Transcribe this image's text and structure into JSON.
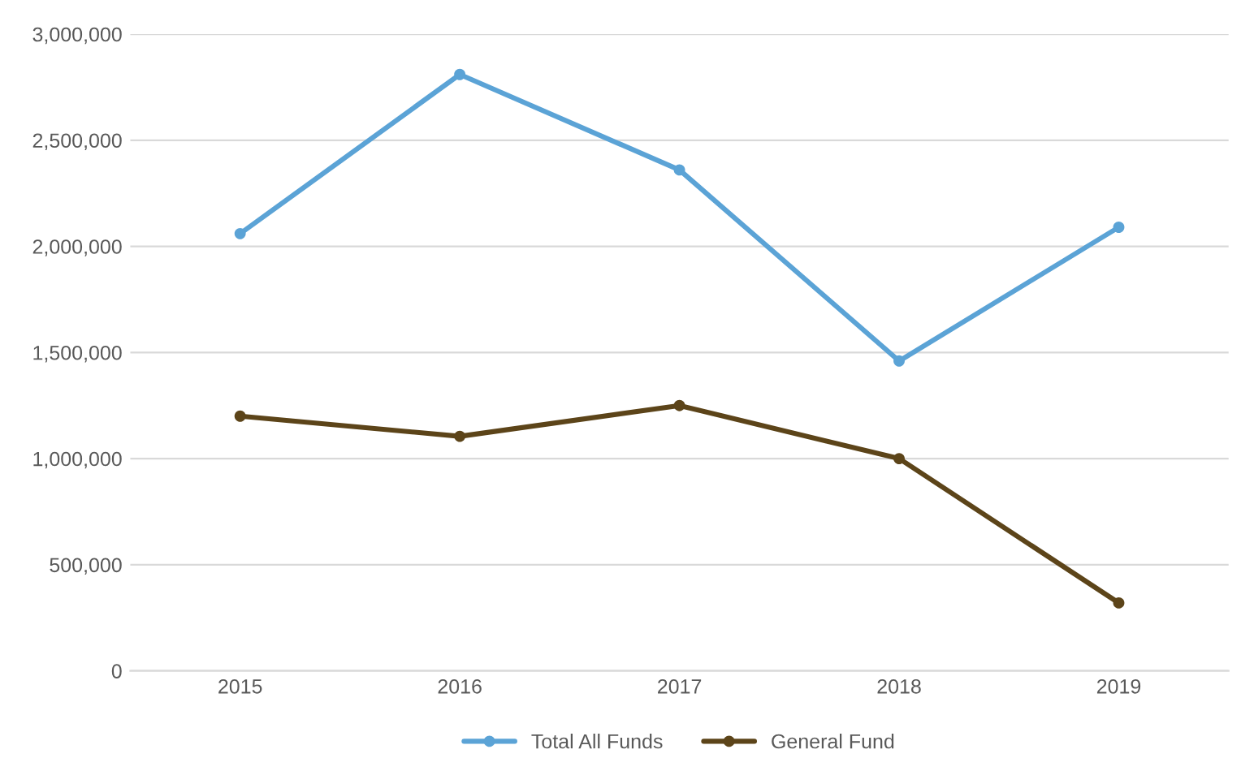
{
  "chart_data": {
    "type": "line",
    "categories": [
      "2015",
      "2016",
      "2017",
      "2018",
      "2019"
    ],
    "series": [
      {
        "name": "Total All Funds",
        "color": "#5ba3d6",
        "values": [
          2060000,
          2810000,
          2360000,
          1460000,
          2090000
        ]
      },
      {
        "name": "General Fund",
        "color": "#5c4419",
        "values": [
          1200000,
          1105000,
          1250000,
          1000000,
          320000
        ]
      }
    ],
    "ylim": [
      0,
      3000000
    ],
    "yticks": [
      {
        "value": 0,
        "label": "0"
      },
      {
        "value": 500000,
        "label": "500,000"
      },
      {
        "value": 1000000,
        "label": "1,000,000"
      },
      {
        "value": 1500000,
        "label": "1,500,000"
      },
      {
        "value": 2000000,
        "label": "2,000,000"
      },
      {
        "value": 2500000,
        "label": "2,500,000"
      },
      {
        "value": 3000000,
        "label": "3,000,000"
      }
    ],
    "grid": "y",
    "legend": "bottom",
    "marker": "circle",
    "line_style": "solid"
  }
}
